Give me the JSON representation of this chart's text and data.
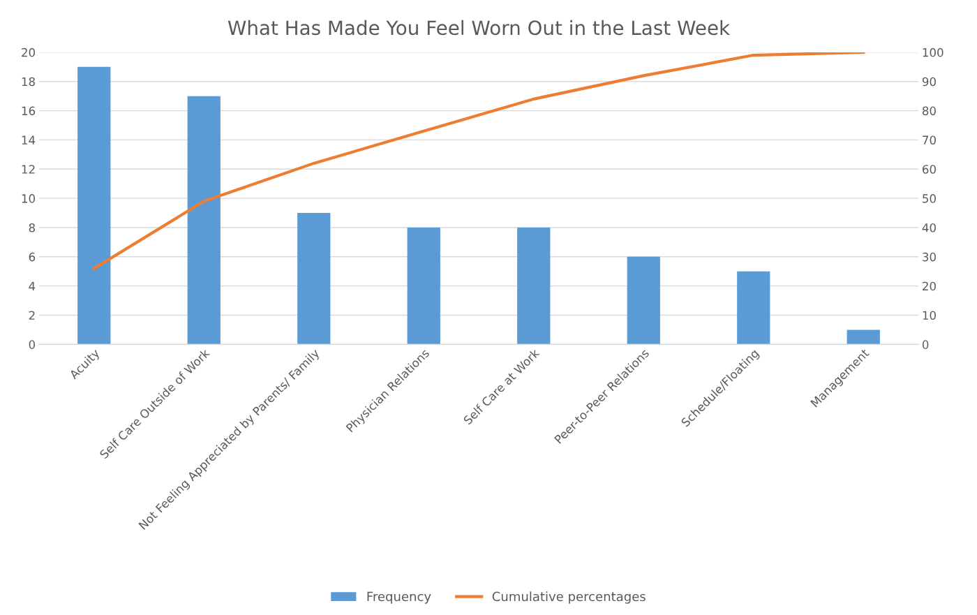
{
  "chart_data": {
    "type": "bar",
    "title": "What Has Made You Feel Worn Out in the Last Week",
    "categories": [
      "Acuity",
      "Self Care Outside of Work",
      "Not Feeling Appreciated by Parents/ Family",
      "Physician Relations",
      "Self Care at Work",
      "Peer-to-Peer Relations",
      "Schedule/Floating",
      "Management"
    ],
    "series": [
      {
        "name": "Frequency",
        "color": "#5b9bd5",
        "values": [
          19,
          17,
          9,
          8,
          8,
          6,
          5,
          1
        ]
      },
      {
        "name": "Cumulative percentages",
        "type": "line",
        "axis": "y2",
        "color": "#ed7d31",
        "values": [
          26,
          49,
          62,
          73,
          84,
          92,
          99,
          100
        ]
      }
    ],
    "ylim": [
      0,
      20
    ],
    "yticks": [
      0,
      2,
      4,
      6,
      8,
      10,
      12,
      14,
      16,
      18,
      20
    ],
    "y2lim": [
      0,
      100
    ],
    "y2ticks": [
      0,
      10,
      20,
      30,
      40,
      50,
      60,
      70,
      80,
      90,
      100
    ],
    "grid": "y",
    "legend": "bottom",
    "marker": "none"
  }
}
